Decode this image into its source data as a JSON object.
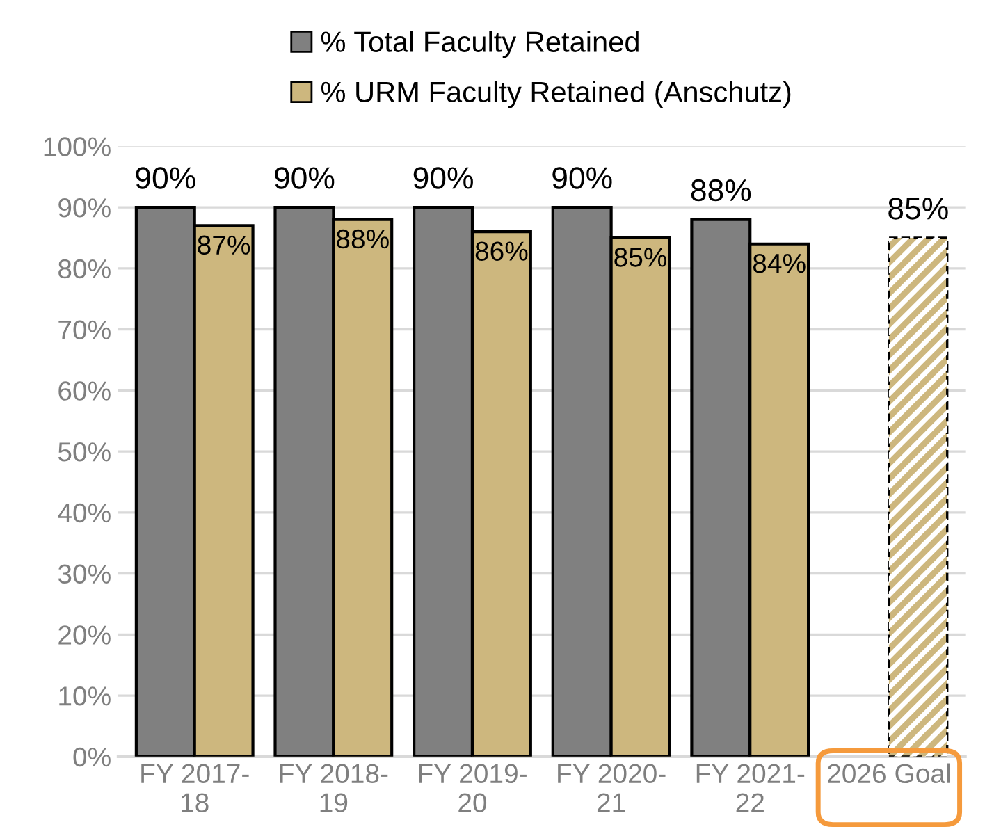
{
  "chart_data": {
    "type": "bar",
    "categories": [
      "FY 2017-\n18",
      "FY 2018-\n19",
      "FY 2019-\n20",
      "FY 2020-\n21",
      "FY 2021-\n22",
      "2026 Goal"
    ],
    "series": [
      {
        "name": "% Total Faculty Retained",
        "color": "#808080",
        "values": [
          90,
          90,
          90,
          90,
          88,
          null
        ],
        "value_labels": [
          "90%",
          "90%",
          "90%",
          "90%",
          "88%",
          null
        ]
      },
      {
        "name": "% URM Faculty Retained (Anschutz)",
        "color": "#cdb77e",
        "values": [
          87,
          88,
          86,
          85,
          84,
          null
        ],
        "value_labels": [
          "87%",
          "88%",
          "86%",
          "85%",
          "84%",
          null
        ]
      },
      {
        "color": "#cdb77e",
        "line_style": "dashed",
        "values": [
          null,
          null,
          null,
          null,
          null,
          85
        ],
        "value_labels": [
          null,
          null,
          null,
          null,
          null,
          "85%"
        ]
      }
    ],
    "ylim": [
      0,
      100
    ],
    "yticks": [
      {
        "value": 0,
        "label": "0%"
      },
      {
        "value": 10,
        "label": "10%"
      },
      {
        "value": 20,
        "label": "20%"
      },
      {
        "value": 30,
        "label": "30%"
      },
      {
        "value": 40,
        "label": "40%"
      },
      {
        "value": 50,
        "label": "50%"
      },
      {
        "value": 60,
        "label": "60%"
      },
      {
        "value": 70,
        "label": "70%"
      },
      {
        "value": 80,
        "label": "80%"
      },
      {
        "value": 90,
        "label": "90%"
      },
      {
        "value": 100,
        "label": "100%"
      }
    ],
    "grid": "y",
    "legend": "top"
  }
}
